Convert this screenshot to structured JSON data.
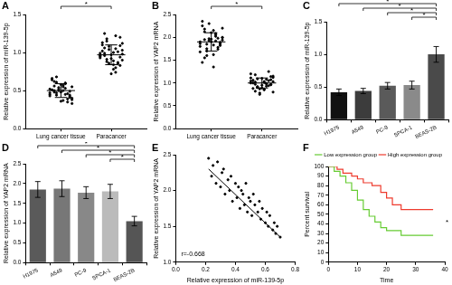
{
  "chart_data": [
    {
      "panel": "A",
      "type": "dotplot",
      "categories": [
        "Lung cancer tissue",
        "Paracancer"
      ],
      "values": [
        [
          0.52,
          0.45,
          0.61,
          0.38,
          0.55,
          0.48,
          0.42,
          0.58,
          0.66,
          0.35,
          0.5,
          0.47,
          0.53,
          0.44,
          0.4,
          0.57,
          0.62,
          0.49,
          0.36,
          0.51,
          0.46,
          0.54,
          0.43,
          0.59,
          0.68,
          0.33,
          0.5,
          0.56,
          0.41,
          0.48,
          0.64,
          0.39,
          0.52,
          0.45,
          0.6,
          0.47,
          0.55,
          0.37,
          0.5,
          0.44
        ],
        [
          0.95,
          1.05,
          0.88,
          1.12,
          0.78,
          0.99,
          1.2,
          0.92,
          1.02,
          0.85,
          1.08,
          0.96,
          0.74,
          1.15,
          0.9,
          1.0,
          1.25,
          0.83,
          0.97,
          1.1,
          0.87,
          1.04,
          0.93,
          0.8,
          1.18,
          0.98,
          0.89,
          1.06,
          0.94,
          0.72,
          1.13,
          1.01,
          0.86,
          0.99,
          1.22,
          0.91,
          1.03,
          0.84,
          0.96,
          1.09
        ]
      ],
      "mean": [
        0.5,
        0.97
      ],
      "sd": [
        0.09,
        0.13
      ],
      "color": "#000000",
      "y_label": "Relative expression of miR-139-5p",
      "ylim": [
        0,
        1.5
      ],
      "yticks": [
        {
          "value": 0,
          "label": "0.0"
        },
        0.5,
        {
          "value": 1,
          "label": "1.0"
        },
        1.5
      ],
      "grid": false,
      "significance": [
        {
          "from": "Lung cancer tissue",
          "to": "Paracancer",
          "label": "*"
        }
      ]
    },
    {
      "panel": "B",
      "type": "dotplot",
      "categories": [
        "Lung cancer tissue",
        "Paracancer"
      ],
      "values": [
        [
          1.9,
          2.05,
          1.75,
          2.2,
          1.62,
          1.95,
          1.85,
          2.1,
          1.45,
          1.98,
          2.3,
          1.8,
          1.92,
          1.7,
          2.0,
          2.15,
          1.55,
          1.88,
          1.96,
          2.25,
          1.78,
          1.93,
          1.68,
          2.08,
          1.85,
          1.99,
          1.35,
          2.12,
          1.82,
          1.9,
          2.35,
          1.74,
          1.97,
          1.86,
          2.02,
          1.6,
          1.94,
          1.83,
          2.18,
          1.89
        ],
        [
          1.0,
          1.08,
          0.92,
          1.15,
          0.85,
          1.02,
          0.96,
          1.1,
          0.88,
          1.05,
          0.78,
          1.2,
          0.98,
          0.9,
          1.12,
          1.03,
          0.82,
          1.07,
          0.95,
          1.0,
          1.25,
          0.87,
          1.04,
          0.93,
          1.09,
          0.8,
          1.01,
          0.97,
          1.14,
          0.89,
          1.06,
          0.94,
          0.75,
          1.11,
          0.99,
          0.91,
          1.03,
          0.86,
          1.18,
          0.97
        ]
      ],
      "mean": [
        1.9,
        1.0
      ],
      "sd": [
        0.2,
        0.11
      ],
      "color": "#000000",
      "y_label": "Relative expression of YAP2 mRNA",
      "ylim": [
        0,
        2.5
      ],
      "yticks": [
        {
          "value": 0,
          "label": "0.0"
        },
        0.5,
        {
          "value": 1,
          "label": "1.0"
        },
        1.5,
        {
          "value": 2,
          "label": "2.0"
        },
        2.5
      ],
      "grid": false,
      "significance": [
        {
          "from": "Lung cancer tissue",
          "to": "Paracancer",
          "label": "*"
        }
      ]
    },
    {
      "panel": "C",
      "type": "bar",
      "categories": [
        "H1975",
        "A549",
        "PC-9",
        "SPCA-1",
        "BEAS-2B"
      ],
      "values": [
        0.42,
        0.44,
        0.52,
        0.53,
        1.0
      ],
      "errors": [
        0.05,
        0.04,
        0.05,
        0.06,
        0.12
      ],
      "colors": [
        "#111111",
        "#3c3c3c",
        "#5a5a5a",
        "#8a8a8a",
        "#4a4a4a"
      ],
      "y_label": "Relative expression of miR-139-5p",
      "ylim": [
        0,
        1.5
      ],
      "yticks": [
        {
          "value": 0,
          "label": "0.0"
        },
        0.5,
        {
          "value": 1,
          "label": "1.0"
        },
        1.5
      ],
      "grid": false,
      "significance": [
        {
          "from": "H1975",
          "to": "BEAS-2B",
          "label": "*"
        },
        {
          "from": "A549",
          "to": "BEAS-2B",
          "label": "*"
        },
        {
          "from": "PC-9",
          "to": "BEAS-2B",
          "label": "*"
        },
        {
          "from": "SPCA-1",
          "to": "BEAS-2B",
          "label": "*"
        }
      ]
    },
    {
      "panel": "D",
      "type": "bar",
      "categories": [
        "H1975",
        "A549",
        "PC-9",
        "SPCA-1",
        "BEAS-2B"
      ],
      "values": [
        1.85,
        1.87,
        1.77,
        1.8,
        1.05
      ],
      "errors": [
        0.2,
        0.2,
        0.15,
        0.18,
        0.12
      ],
      "colors": [
        "#5a5a5a",
        "#777777",
        "#888888",
        "#bbbbbb",
        "#555555"
      ],
      "y_label": "Relative expression of YAP2 mRNA",
      "ylim": [
        0,
        2.5
      ],
      "yticks": [
        {
          "value": 0,
          "label": "0.0"
        },
        0.5,
        {
          "value": 1,
          "label": "1.0"
        },
        1.5,
        {
          "value": 2,
          "label": "2.0"
        },
        2.5
      ],
      "grid": false,
      "significance": [
        {
          "from": "H1975",
          "to": "BEAS-2B",
          "label": "*"
        },
        {
          "from": "A549",
          "to": "BEAS-2B",
          "label": "*"
        },
        {
          "from": "PC-9",
          "to": "BEAS-2B",
          "label": "*"
        },
        {
          "from": "SPCA-1",
          "to": "BEAS-2B",
          "label": "*"
        }
      ]
    },
    {
      "panel": "E",
      "type": "scatter",
      "x": [
        0.22,
        0.24,
        0.25,
        0.27,
        0.28,
        0.3,
        0.31,
        0.32,
        0.33,
        0.35,
        0.36,
        0.37,
        0.38,
        0.4,
        0.41,
        0.42,
        0.43,
        0.44,
        0.45,
        0.46,
        0.47,
        0.48,
        0.49,
        0.5,
        0.51,
        0.52,
        0.53,
        0.55,
        0.56,
        0.57,
        0.58,
        0.6,
        0.61,
        0.62,
        0.63,
        0.65,
        0.66,
        0.67,
        0.68,
        0.7
      ],
      "values": [
        2.45,
        2.2,
        2.35,
        2.1,
        2.4,
        2.05,
        2.25,
        2.3,
        1.95,
        2.15,
        2.0,
        2.2,
        1.85,
        2.1,
        1.9,
        2.05,
        1.75,
        2.0,
        1.95,
        1.8,
        2.1,
        1.7,
        1.9,
        1.85,
        1.65,
        1.95,
        1.8,
        1.7,
        1.85,
        1.6,
        1.75,
        1.55,
        1.7,
        1.5,
        1.65,
        1.45,
        1.55,
        1.4,
        1.5,
        1.35
      ],
      "fit": {
        "x": [
          0.22,
          0.7
        ],
        "values": [
          2.3,
          1.35
        ]
      },
      "color": "#000000",
      "annotation": "r=-0.668",
      "x_label": "Relative expression of miR-139-5p",
      "y_label": "Relative expression of YAP2 mRNA",
      "xlim": [
        0,
        0.8
      ],
      "xticks": [
        {
          "value": 0,
          "label": "0.0"
        },
        0.2,
        0.4,
        0.6,
        0.8
      ],
      "ylim": [
        1,
        2.5
      ],
      "yticks": [
        {
          "value": 1,
          "label": "1.0"
        },
        1.5,
        {
          "value": 2,
          "label": "2.0"
        },
        2.5
      ],
      "grid": false
    },
    {
      "panel": "F",
      "type": "line",
      "line_style": "step",
      "series": [
        {
          "name": "Low expression group",
          "color": "#66cc33",
          "x": [
            0,
            2,
            4,
            6,
            8,
            10,
            12,
            14,
            16,
            18,
            20,
            25,
            36
          ],
          "values": [
            100,
            95,
            90,
            83,
            75,
            65,
            55,
            48,
            42,
            36,
            33,
            28,
            28
          ]
        },
        {
          "name": "High expression group",
          "color": "#ee3b2e",
          "x": [
            0,
            3,
            5,
            8,
            10,
            12,
            15,
            18,
            20,
            22,
            25,
            36
          ],
          "values": [
            100,
            97,
            93,
            90,
            87,
            83,
            80,
            73,
            67,
            60,
            55,
            55
          ]
        }
      ],
      "annotation": "*",
      "legend": "upper right",
      "x_label": "Time",
      "y_label": "Percent survival",
      "xlim": [
        0,
        40
      ],
      "xticks": [
        0,
        10,
        20,
        30,
        40
      ],
      "ylim": [
        0,
        100
      ],
      "yticks": [
        0,
        10,
        20,
        30,
        40,
        50,
        60,
        70,
        80,
        90,
        100
      ],
      "grid": false
    }
  ]
}
